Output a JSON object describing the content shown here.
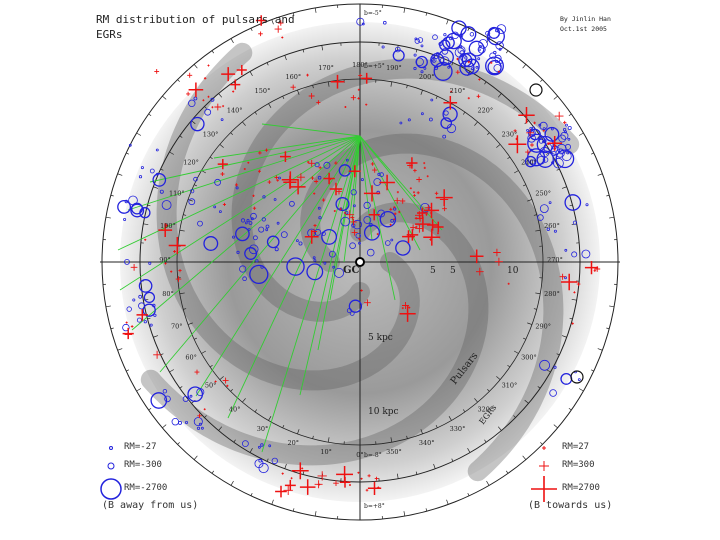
{
  "title": "RM distribution of pulsars and EGRs",
  "credit": "By Jinlin Han\nOct.1st 2005",
  "center_labels": {
    "gc": "GC",
    "sun_tick": "5"
  },
  "distance_labels": [
    "5 kpc",
    "10 kpc"
  ],
  "x_ticks": [
    "5",
    "10"
  ],
  "arc_labels": {
    "pulsars": "Pulsars",
    "egrs": "EGRs"
  },
  "galactic_latitudes": [
    "b=-5°",
    "b=+5°",
    "b=-8°",
    "b=+8°"
  ],
  "longitude_labels": [
    "0°",
    "10°",
    "20°",
    "30°",
    "40°",
    "50°",
    "60°",
    "70°",
    "80°",
    "90°",
    "100°",
    "110°",
    "120°",
    "130°",
    "140°",
    "150°",
    "160°",
    "170°",
    "180°",
    "190°",
    "200°",
    "210°",
    "220°",
    "230°",
    "240°",
    "250°",
    "260°",
    "270°",
    "280°",
    "290°",
    "300°",
    "310°",
    "320°",
    "330°",
    "340°",
    "350°"
  ],
  "legend": {
    "away": {
      "items": [
        "RM=-27",
        "RM=-300",
        "RM=-2700"
      ],
      "note": "(B away from us)",
      "color": "#2222dd"
    },
    "towards": {
      "items": [
        "RM=27",
        "RM=300",
        "RM=2700"
      ],
      "note": "(B towards us)",
      "color": "#ee1111"
    }
  },
  "colors": {
    "negative_rm": "#2222dd",
    "positive_rm": "#ee1111",
    "sightline": "#33cc33",
    "ring": "#222222"
  }
}
